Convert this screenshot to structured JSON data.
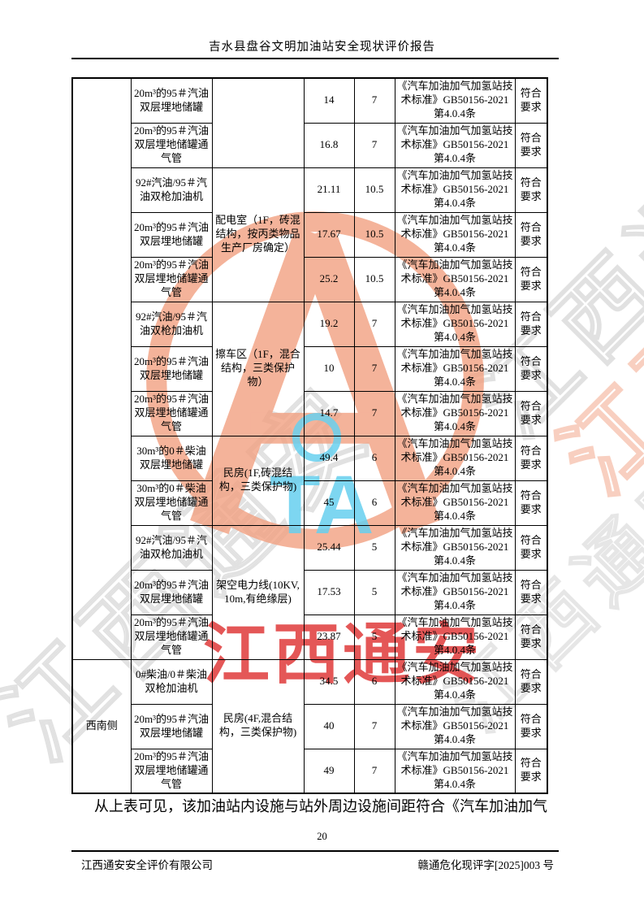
{
  "header": {
    "title": "吉水县盘谷文明加油站安全现状评价报告"
  },
  "table": {
    "shared": {
      "basis": "《汽车加油加气加氢站技术标准》GB50156-2021第4.0.4条",
      "conclusion": "符合要求"
    },
    "direction_groups": [
      {
        "label": "",
        "span": 13
      },
      {
        "label": "西南侧",
        "span": 3
      }
    ],
    "external_groups": [
      {
        "label": "",
        "span": 2
      },
      {
        "label": "配电室（1F，砖混结构，按丙类物品生产厂房确定）",
        "span": 3
      },
      {
        "label": "擦车区（1F，混合结构，三类保护物）",
        "span": 3
      },
      {
        "label": "民房(1F,砖混结构，三类保护物)",
        "span": 2
      },
      {
        "label": "架空电力线(10KV,10m,有绝缘层)",
        "span": 3
      },
      {
        "label": "民房(4F,混合结构，三类保护物)",
        "span": 3
      }
    ],
    "rows": [
      {
        "facility": "20m³的95＃汽油双层埋地储罐",
        "actual": "14",
        "required": "7"
      },
      {
        "facility": "20m³的95＃汽油双层埋地储罐通气管",
        "actual": "16.8",
        "required": "7"
      },
      {
        "facility": "92#汽油/95＃汽油双枪加油机",
        "actual": "21.11",
        "required": "10.5"
      },
      {
        "facility": "20m³的95＃汽油双层埋地储罐",
        "actual": "17.67",
        "required": "10.5"
      },
      {
        "facility": "20m³的95＃汽油双层埋地储罐通气管",
        "actual": "25.2",
        "required": "10.5"
      },
      {
        "facility": "92#汽油/95＃汽油双枪加油机",
        "actual": "19.2",
        "required": "7"
      },
      {
        "facility": "20m³的95＃汽油双层埋地储罐",
        "actual": "10",
        "required": "7"
      },
      {
        "facility": "20m³的95＃汽油双层埋地储罐通气管",
        "actual": "14.7",
        "required": "7"
      },
      {
        "facility": "30m³的0＃柴油双层埋地储罐",
        "actual": "49.4",
        "required": "6"
      },
      {
        "facility": "30m³的0＃柴油双层埋地储罐通气管",
        "actual": "45",
        "required": "6"
      },
      {
        "facility": "92#汽油/95＃汽油双枪加油机",
        "actual": "25.44",
        "required": "5"
      },
      {
        "facility": "20m³的95＃汽油双层埋地储罐",
        "actual": "17.53",
        "required": "5"
      },
      {
        "facility": "20m³的95＃汽油双层埋地储罐通气管",
        "actual": "23.87",
        "required": "5"
      },
      {
        "facility": "0#柴油/0＃柴油双枪加油机",
        "actual": "34.5",
        "required": "6"
      },
      {
        "facility": "20m³的95＃汽油双层埋地储罐",
        "actual": "40",
        "required": "7"
      },
      {
        "facility": "20m³的95＃汽油双层埋地储罐通气管",
        "actual": "49",
        "required": "7"
      }
    ]
  },
  "paragraph": "从上表可见，该加油站内设施与站外周边设施间距符合《汽车加油加气",
  "page_number": "20",
  "footer": {
    "left": "江西通安安全评价有限公司",
    "right": "赣通危化现评字[2025]003 号"
  },
  "watermark": {
    "red_text": "江西通安",
    "blue_text": "TA",
    "outline_text": "江西通安",
    "colors": {
      "orange": "#f2a182",
      "blue": "#67d0ef",
      "red": "#e03a3a",
      "gray": "#c9c9c9"
    }
  }
}
